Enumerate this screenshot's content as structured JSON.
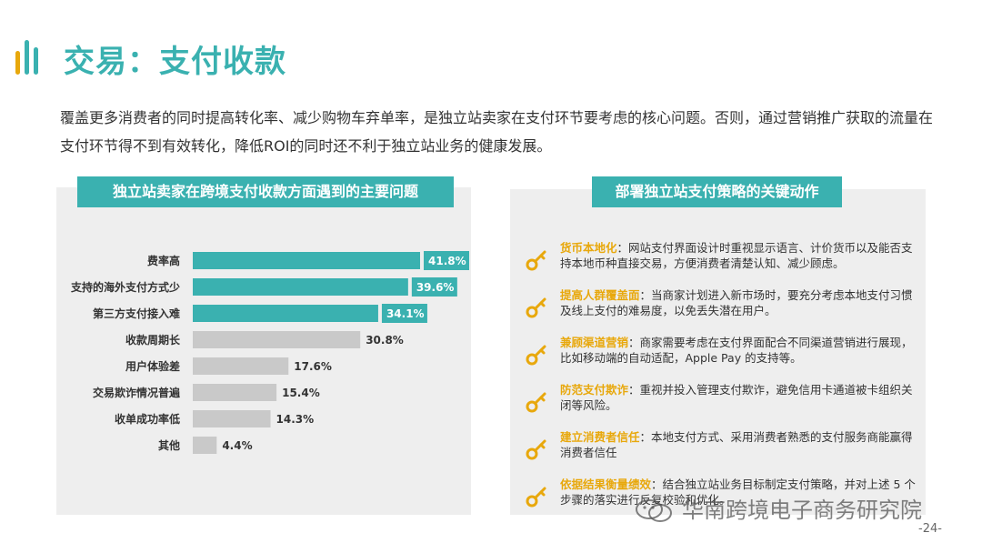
{
  "page": {
    "title": "交易：支付收款",
    "intro": "覆盖更多消费者的同时提高转化率、减少购物车弃单率，是独立站卖家在支付环节要考虑的核心问题。否则，通过营销推广获取的流量在支付环节得不到有效转化，降低ROI的同时还不利于独立站业务的健康发展。",
    "page_number": "-24-",
    "watermark": "华南跨境电子商务研究院",
    "colors": {
      "accent": "#3AB1B0",
      "bar_gray": "#C9C9C9",
      "highlight": "#E8A80C",
      "panel": "#EEEEEE",
      "logo_bars": [
        "#E8A80C",
        "#3AB1B0",
        "#3AB1B0"
      ]
    },
    "icons": {
      "logo": "bar-logo-icon",
      "action": "key-icon",
      "watermark": "wechat-icon"
    }
  },
  "left_panel": {
    "header": "独立站卖家在跨境支付收款方面遇到的主要问题"
  },
  "chart_data": {
    "type": "bar",
    "orientation": "horizontal",
    "categories": [
      "费率高",
      "支持的海外支付方式少",
      "第三方支付接入难",
      "收款周期长",
      "用户体验差",
      "交易欺诈情况普遍",
      "收单成功率低",
      "其他"
    ],
    "values": [
      41.8,
      39.6,
      34.1,
      30.8,
      17.6,
      15.4,
      14.3,
      4.4
    ],
    "labels": [
      "41.8%",
      "39.6%",
      "34.1%",
      "30.8%",
      "17.6%",
      "15.4%",
      "14.3%",
      "4.4%"
    ],
    "highlighted": [
      true,
      true,
      true,
      false,
      false,
      false,
      false,
      false
    ],
    "unit": "%",
    "xlim": [
      0,
      41.8
    ],
    "grid": false,
    "legend": "none"
  },
  "right_panel": {
    "header": "部署独立站支付策略的关键动作",
    "items": [
      {
        "title": "货币本地化",
        "text": "：网站支付界面设计时重视显示语言、计价货币以及能否支持本地币种直接交易，方便消费者清楚认知、减少顾虑。"
      },
      {
        "title": "提高人群覆盖面",
        "text": "：当商家计划进入新市场时，要充分考虑本地支付习惯及线上支付的难易度，以免丢失潜在用户。"
      },
      {
        "title": "兼顾渠道营销",
        "text": "：商家需要考虑在支付界面配合不同渠道营销进行展现，比如移动端的自动适配，Apple Pay 的支持等。"
      },
      {
        "title": "防范支付欺诈",
        "text": "：重视并投入管理支付欺诈，避免信用卡通道被卡组织关闭等风险。"
      },
      {
        "title": "建立消费者信任",
        "text": "：本地支付方式、采用消费者熟悉的支付服务商能赢得消费者信任"
      },
      {
        "title": "依据结果衡量绩效",
        "text": "：结合独立站业务目标制定支付策略，并对上述 5 个步骤的落实进行反复校验和优化。"
      }
    ]
  }
}
